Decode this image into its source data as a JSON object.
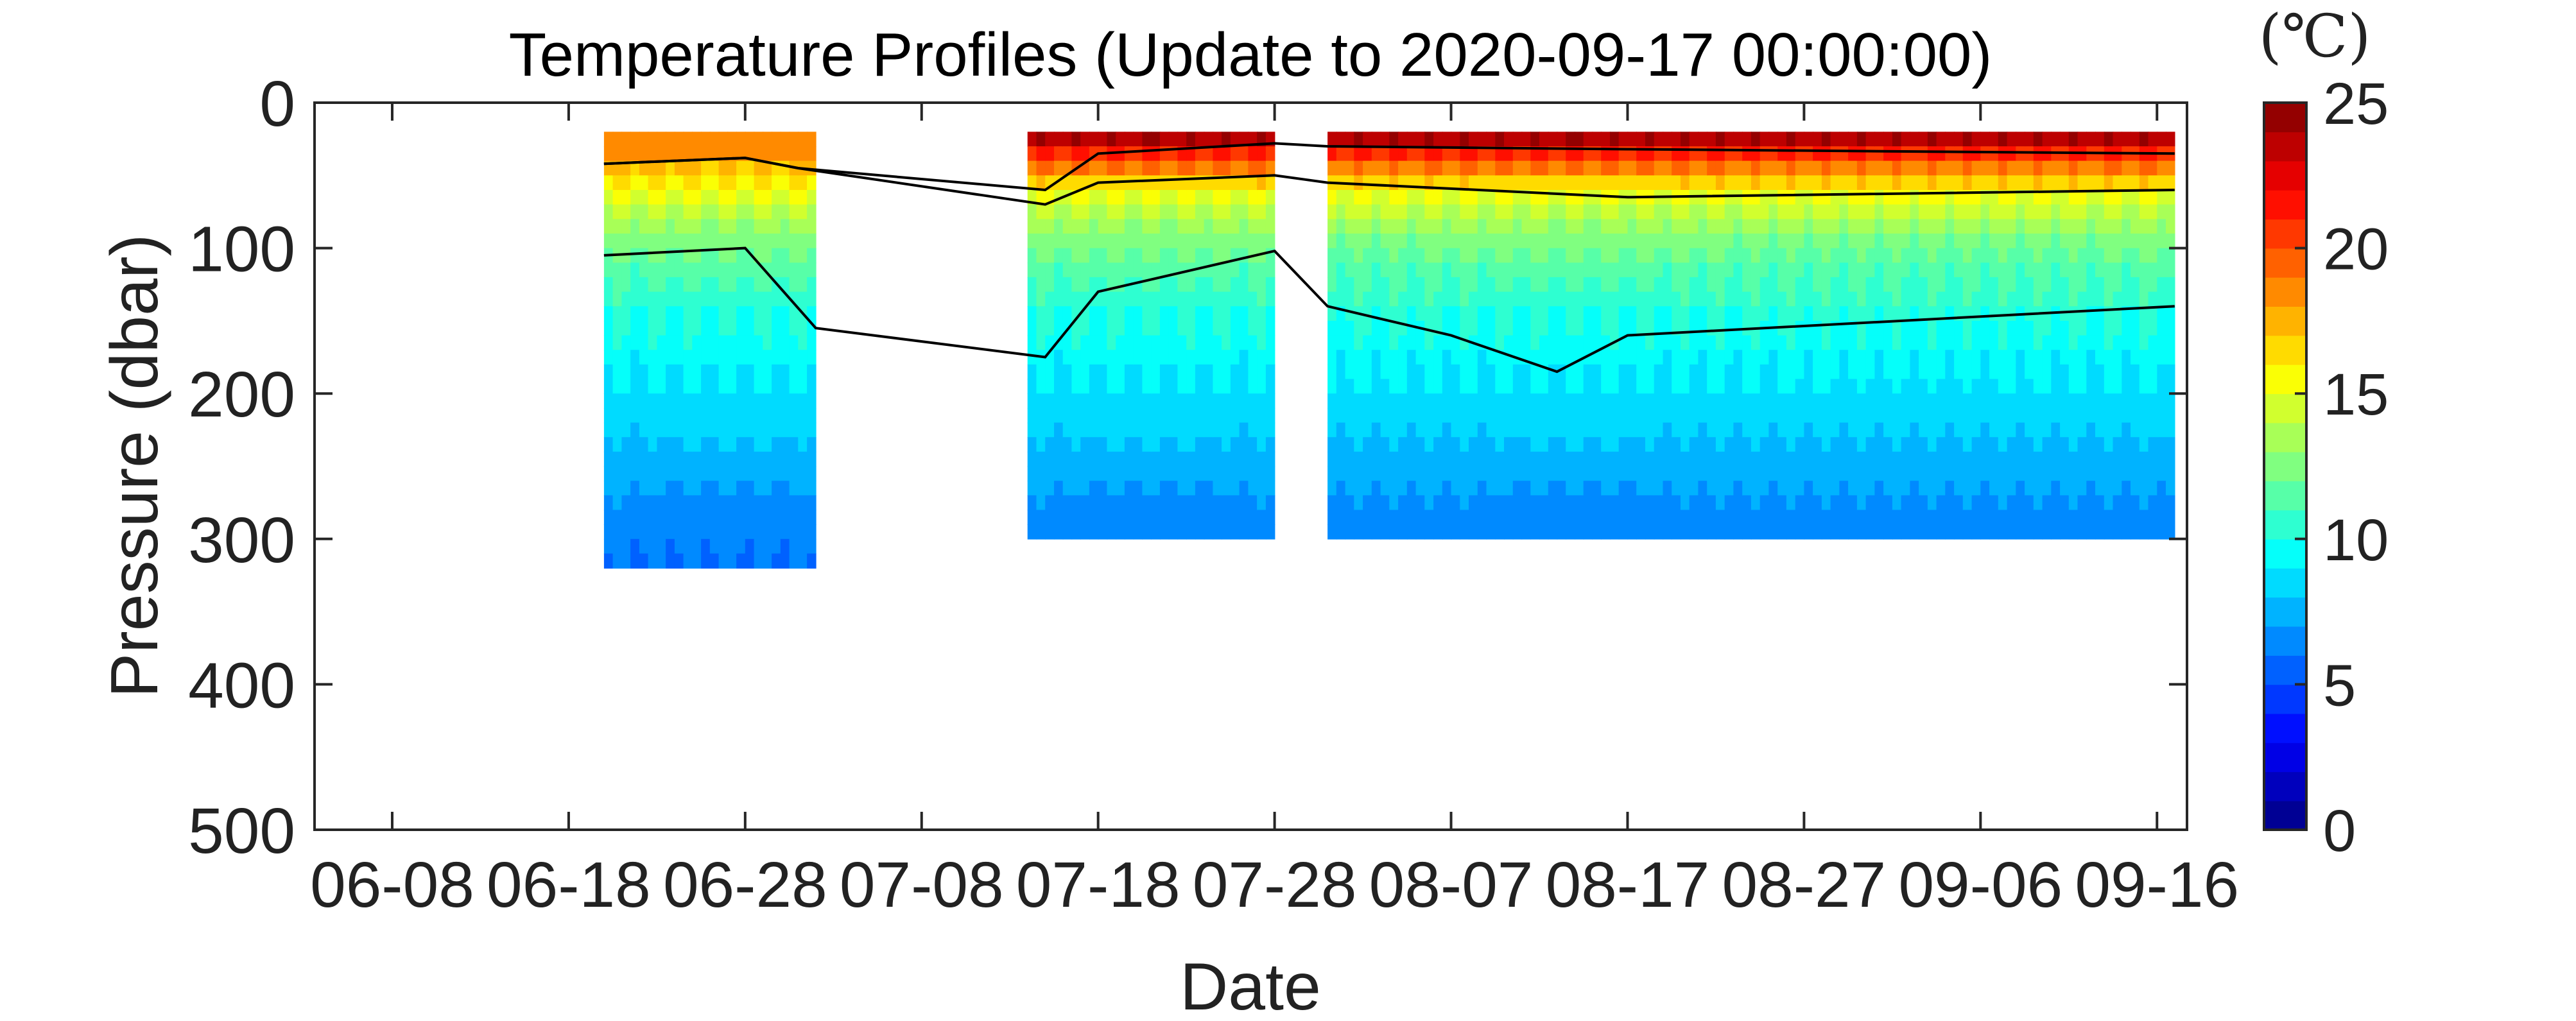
{
  "chart_data": {
    "type": "heatmap",
    "title": "Temperature Profiles (Update to 2020-09-17 00:00:00)",
    "xlabel": "Date",
    "ylabel": "Pressure (dbar)",
    "x_ticks": [
      "06-08",
      "06-18",
      "06-28",
      "07-08",
      "07-18",
      "07-28",
      "08-07",
      "08-17",
      "08-27",
      "09-06",
      "09-16"
    ],
    "y_ticks": [
      0,
      100,
      200,
      300,
      400,
      500
    ],
    "ylim": [
      0,
      500
    ],
    "y_reversed": true,
    "xlim_days": [
      -4.4,
      101.7
    ],
    "colorbar": {
      "unit": "(℃)",
      "ticks": [
        0,
        5,
        10,
        15,
        20,
        25
      ],
      "range": [
        0,
        25
      ],
      "colormap": "jet",
      "levels": 25
    },
    "grid": false,
    "segments": [
      {
        "start": "06-20",
        "end": "07-02",
        "min_pressure": 20,
        "max_pressure": 320,
        "surface_temperature_C": 18.5
      },
      {
        "start": "07-14",
        "end": "07-28",
        "min_pressure": 20,
        "max_pressure": 300,
        "surface_temperature_C": 25
      },
      {
        "start": "07-31",
        "end": "09-17",
        "min_pressure": 20,
        "max_pressure": 300,
        "surface_temperature_C": 25
      }
    ],
    "isotherms_C": [
      20,
      15,
      10
    ],
    "isotherm_depths_dbar": [
      {
        "temperature_C": 20,
        "points": [
          [
            "06-20",
            42
          ],
          [
            "06-28",
            38
          ],
          [
            "07-01",
            45
          ],
          [
            "07-15",
            60
          ],
          [
            "07-18",
            35
          ],
          [
            "07-28",
            28
          ],
          [
            "07-31",
            30
          ],
          [
            "08-17",
            32
          ],
          [
            "09-17",
            35
          ]
        ]
      },
      {
        "temperature_C": 15,
        "points": [
          [
            "06-20",
            42
          ],
          [
            "06-28",
            38
          ],
          [
            "07-01",
            45
          ],
          [
            "07-15",
            70
          ],
          [
            "07-18",
            55
          ],
          [
            "07-28",
            50
          ],
          [
            "07-31",
            55
          ],
          [
            "08-17",
            65
          ],
          [
            "09-17",
            60
          ]
        ]
      },
      {
        "temperature_C": 10,
        "points": [
          [
            "06-20",
            105
          ],
          [
            "06-28",
            100
          ],
          [
            "07-02",
            155
          ],
          [
            "07-15",
            175
          ],
          [
            "07-18",
            130
          ],
          [
            "07-28",
            102
          ],
          [
            "07-31",
            140
          ],
          [
            "08-07",
            160
          ],
          [
            "08-13",
            185
          ],
          [
            "08-17",
            160
          ],
          [
            "09-17",
            140
          ]
        ]
      }
    ]
  }
}
